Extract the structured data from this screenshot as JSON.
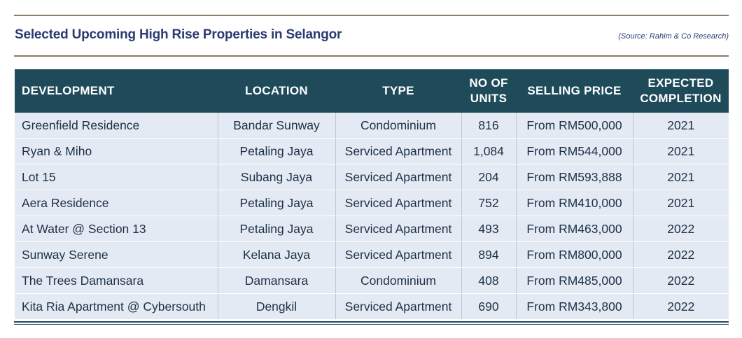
{
  "header": {
    "title": "Selected Upcoming High Rise Properties in Selangor",
    "source": "(Source: Rahim & Co Research)"
  },
  "table": {
    "columns": {
      "development": "DEVELOPMENT",
      "location": "LOCATION",
      "type": "TYPE",
      "units_line1": "NO OF",
      "units_line2": "UNITS",
      "price": "SELLING PRICE",
      "completion_line1": "EXPECTED",
      "completion_line2": "COMPLETION"
    },
    "rows": [
      {
        "development": "Greenfield Residence",
        "location": "Bandar Sunway",
        "type": "Condominium",
        "units": "816",
        "price": "From RM500,000",
        "completion": "2021"
      },
      {
        "development": "Ryan & Miho",
        "location": "Petaling Jaya",
        "type": "Serviced Apartment",
        "units": "1,084",
        "price": "From RM544,000",
        "completion": "2021"
      },
      {
        "development": "Lot 15",
        "location": "Subang Jaya",
        "type": "Serviced Apartment",
        "units": "204",
        "price": "From RM593,888",
        "completion": "2021"
      },
      {
        "development": "Aera Residence",
        "location": "Petaling Jaya",
        "type": "Serviced Apartment",
        "units": "752",
        "price": "From RM410,000",
        "completion": "2021"
      },
      {
        "development": "At Water @ Section 13",
        "location": "Petaling Jaya",
        "type": "Serviced Apartment",
        "units": "493",
        "price": "From RM463,000",
        "completion": "2022"
      },
      {
        "development": "Sunway Serene",
        "location": "Kelana Jaya",
        "type": "Serviced Apartment",
        "units": "894",
        "price": "From RM800,000",
        "completion": "2022"
      },
      {
        "development": "The Trees Damansara",
        "location": "Damansara",
        "type": "Condominium",
        "units": "408",
        "price": "From RM485,000",
        "completion": "2022"
      },
      {
        "development": "Kita Ria Apartment @ Cybersouth",
        "location": "Dengkil",
        "type": "Serviced Apartment",
        "units": "690",
        "price": "From RM343,800",
        "completion": "2022"
      }
    ]
  }
}
